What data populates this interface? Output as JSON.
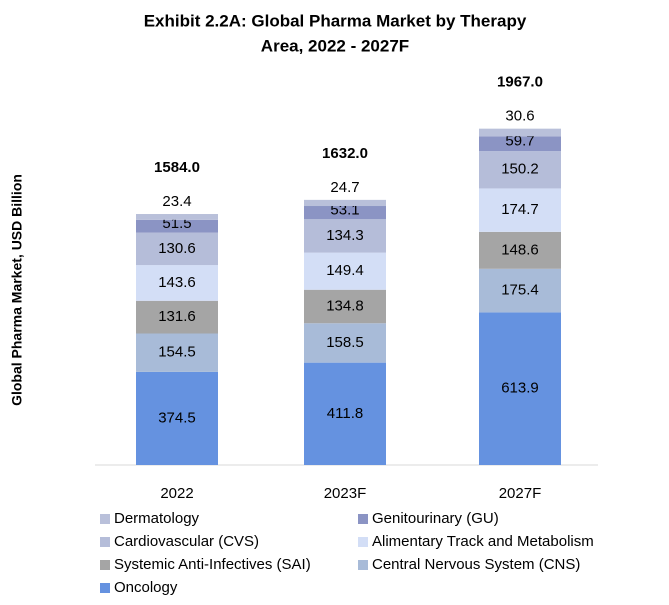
{
  "chart_data": {
    "type": "stacked_bar",
    "title": [
      "Exhibit 2.2A: Global Pharma Market by Therapy",
      "Area, 2022 - 2027F"
    ],
    "y_label": "Global Pharma Market, USD Billion",
    "categories": [
      "2022",
      "2023F",
      "2027F"
    ],
    "series": [
      {
        "name": "Oncology",
        "color": "#6592e0",
        "values": [
          374.5,
          411.8,
          613.9
        ]
      },
      {
        "name": "Central Nervous System (CNS)",
        "color": "#a8bbd8",
        "values": [
          154.5,
          158.5,
          175.4
        ]
      },
      {
        "name": "Systemic Anti-Infectives (SAI)",
        "color": "#a5a5a5",
        "values": [
          131.6,
          134.8,
          148.6
        ]
      },
      {
        "name": "Alimentary Track and Metabolism",
        "color": "#d3def6",
        "values": [
          143.6,
          149.4,
          174.7
        ]
      },
      {
        "name": "Cardiovascular (CVS)",
        "color": "#b5bdd9",
        "values": [
          130.6,
          134.3,
          150.2
        ]
      },
      {
        "name": "Genitourinary (GU)",
        "color": "#8b94c4",
        "values": [
          51.5,
          53.1,
          59.7
        ]
      },
      {
        "name": "Dermatology",
        "color": "#b9c0da",
        "values": [
          23.4,
          24.7,
          30.6
        ]
      }
    ],
    "totals": {
      "values": [
        1584,
        1632,
        1967
      ],
      "value_labels": [
        "1584.0",
        "1632.0",
        "1967.0"
      ]
    },
    "ylim": [
      0,
      1400
    ]
  }
}
